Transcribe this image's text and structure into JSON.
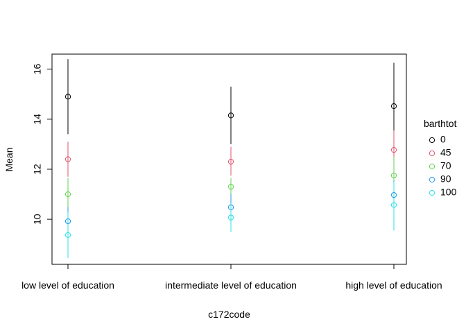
{
  "chart_data": {
    "type": "scatter",
    "title": "",
    "xlabel": "c172code",
    "ylabel": "Mean",
    "categories": [
      "low level of education",
      "intermediate level of education",
      "high level of education"
    ],
    "y_ticks": [
      10,
      12,
      14,
      16
    ],
    "ylim": [
      8.2,
      16.6
    ],
    "grid": false,
    "legend": {
      "title": "barthtot",
      "placement": "right"
    },
    "series": [
      {
        "name": "0",
        "color": "#000000",
        "values": [
          14.9,
          14.15,
          14.52
        ],
        "lower": [
          13.4,
          13.0,
          12.8
        ],
        "upper": [
          16.4,
          15.3,
          16.25
        ]
      },
      {
        "name": "45",
        "color": "#DF536B",
        "values": [
          12.4,
          12.3,
          12.77
        ],
        "lower": [
          11.7,
          11.75,
          12.0
        ],
        "upper": [
          13.1,
          12.9,
          13.55
        ]
      },
      {
        "name": "70",
        "color": "#61D04F",
        "values": [
          11.0,
          11.3,
          11.75
        ],
        "lower": [
          10.45,
          10.95,
          11.0
        ],
        "upper": [
          11.65,
          11.65,
          12.5
        ]
      },
      {
        "name": "90",
        "color": "#2297E6",
        "values": [
          9.92,
          10.48,
          10.97
        ],
        "lower": [
          9.3,
          9.95,
          10.4
        ],
        "upper": [
          10.5,
          11.0,
          11.55
        ]
      },
      {
        "name": "100",
        "color": "#28E2E5",
        "values": [
          9.37,
          10.07,
          10.57
        ],
        "lower": [
          8.45,
          9.5,
          9.55
        ],
        "upper": [
          10.3,
          10.65,
          11.5
        ]
      }
    ]
  }
}
